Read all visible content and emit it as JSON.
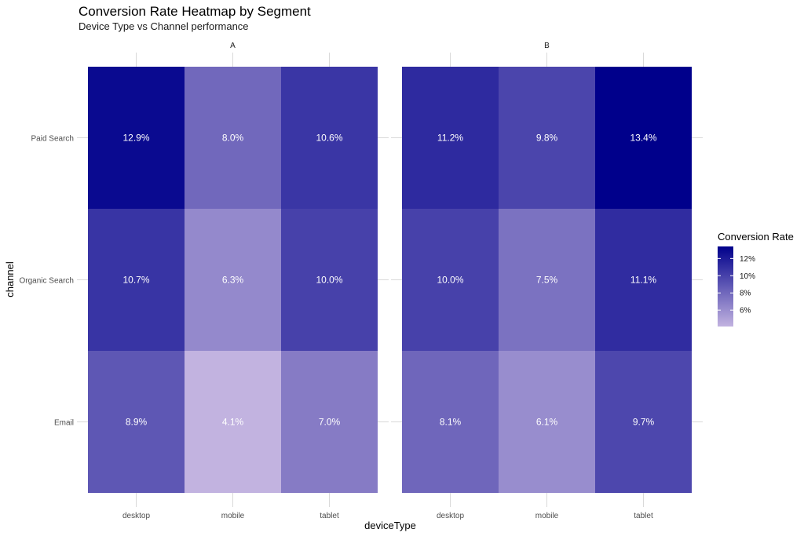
{
  "chart_data": {
    "type": "heatmap",
    "title": "Conversion Rate Heatmap by Segment",
    "subtitle": "Device Type vs Channel performance",
    "xlabel": "deviceType",
    "ylabel": "channel",
    "x_categories": [
      "desktop",
      "mobile",
      "tablet"
    ],
    "y_categories": [
      "Paid Search",
      "Organic Search",
      "Email"
    ],
    "facets": [
      {
        "label": "A",
        "values": [
          [
            12.9,
            8.0,
            10.6
          ],
          [
            10.7,
            6.3,
            10.0
          ],
          [
            8.9,
            4.1,
            7.0
          ]
        ],
        "labels": [
          [
            "12.9%",
            "8.0%",
            "10.6%"
          ],
          [
            "10.7%",
            "6.3%",
            "10.0%"
          ],
          [
            "8.9%",
            "4.1%",
            "7.0%"
          ]
        ]
      },
      {
        "label": "B",
        "values": [
          [
            11.2,
            9.8,
            13.4
          ],
          [
            10.0,
            7.5,
            11.1
          ],
          [
            8.1,
            6.1,
            9.7
          ]
        ],
        "labels": [
          [
            "11.2%",
            "9.8%",
            "13.4%"
          ],
          [
            "10.0%",
            "7.5%",
            "11.1%"
          ],
          [
            "8.1%",
            "6.1%",
            "9.7%"
          ]
        ]
      }
    ],
    "legend": {
      "title": "Conversion Rate",
      "placement": "right",
      "ticks": [
        12,
        10,
        8,
        6
      ],
      "tick_labels": [
        "12%",
        "10%",
        "8%",
        "6%"
      ],
      "range": [
        4.1,
        13.4
      ]
    },
    "colors": {
      "low": "#c2b3e0",
      "high": "#00008b",
      "label_text": "#ffffff",
      "axis_text": "#4d4d4d",
      "grid": "#d9d9d9"
    },
    "grid": true
  }
}
